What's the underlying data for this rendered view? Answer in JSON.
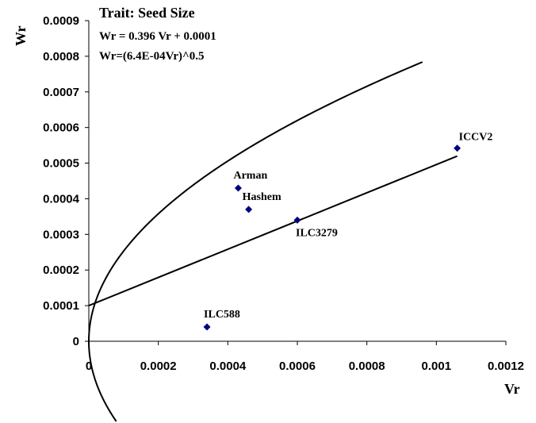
{
  "chart_data": {
    "type": "scatter",
    "title": "Trait: Seed Size",
    "equations": [
      "Wr = 0.396 Vr + 0.0001",
      "Wr=(6.4E-04Vr)^0.5"
    ],
    "xlabel": "Vr",
    "ylabel": "Wr",
    "xlim": [
      0,
      0.0012
    ],
    "ylim": [
      0,
      0.0009
    ],
    "x_ticks": [
      "0",
      "0.0002",
      "0.0004",
      "0.0006",
      "0.0008",
      "0.001",
      "0.0012"
    ],
    "y_ticks": [
      "0",
      "0.0001",
      "0.0002",
      "0.0003",
      "0.0004",
      "0.0005",
      "0.0006",
      "0.0007",
      "0.0008",
      "0.0009"
    ],
    "grid": false,
    "points": [
      {
        "label": "ICCV2",
        "x": 0.00106,
        "y": 0.000542
      },
      {
        "label": "Arman",
        "x": 0.00043,
        "y": 0.00043
      },
      {
        "label": "Hashem",
        "x": 0.00046,
        "y": 0.00037
      },
      {
        "label": "ILC3279",
        "x": 0.0006,
        "y": 0.00034
      },
      {
        "label": "ILC588",
        "x": 0.00034,
        "y": 4e-05
      }
    ],
    "regression": {
      "slope": 0.396,
      "intercept": 0.0001,
      "x_range": [
        0,
        0.00106
      ]
    },
    "parabola": {
      "coef": 0.00064,
      "x_max": 0.00096
    },
    "marker_color": "#000080",
    "line_color": "#000000"
  }
}
